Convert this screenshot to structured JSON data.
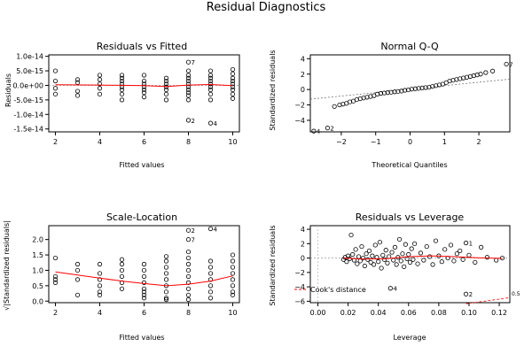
{
  "figure": {
    "title": "Residual Diagnostics"
  },
  "chart_data": [
    {
      "id": "rvf",
      "type": "scatter",
      "title": "Residuals vs Fitted",
      "xlabel": "Fitted values",
      "ylabel": "Residuals",
      "xlim": [
        1.7,
        10.3
      ],
      "ylim": [
        -1.6e-14,
        1.05e-14
      ],
      "xticks": [
        2,
        4,
        6,
        8,
        10
      ],
      "xticklabels": [
        "2",
        "4",
        "6",
        "8",
        "10"
      ],
      "yticks": [
        -1.5e-14,
        -1e-14,
        -5e-15,
        0,
        5e-15,
        1e-14
      ],
      "yticklabels": [
        "-1.5e-14",
        "-1.0e-14",
        "-5.0e-15",
        "0.0e+00",
        "5.0e-15",
        "1.0e-14"
      ],
      "points": [
        [
          2,
          5e-15
        ],
        [
          2,
          -1e-15
        ],
        [
          2,
          1.5e-15
        ],
        [
          2,
          -3e-15
        ],
        [
          3,
          2e-15
        ],
        [
          3,
          1e-15
        ],
        [
          3,
          -2e-15
        ],
        [
          3,
          -3.5e-15
        ],
        [
          4,
          3.5e-15
        ],
        [
          4,
          2e-15
        ],
        [
          4,
          5e-16
        ],
        [
          4,
          -1e-15
        ],
        [
          4,
          -3e-15
        ],
        [
          5,
          3.5e-15
        ],
        [
          5,
          2.5e-15
        ],
        [
          5,
          1.5e-15
        ],
        [
          5,
          5e-16
        ],
        [
          5,
          -5e-16
        ],
        [
          5,
          -1.5e-15
        ],
        [
          5,
          -3e-15
        ],
        [
          5,
          -5e-15
        ],
        [
          6,
          3.5e-15
        ],
        [
          6,
          1.5e-15
        ],
        [
          6,
          5e-16
        ],
        [
          6,
          -5e-16
        ],
        [
          6,
          -1.5e-15
        ],
        [
          6,
          -2.5e-15
        ],
        [
          6,
          -4e-15
        ],
        [
          7,
          2.5e-15
        ],
        [
          7,
          1.5e-15
        ],
        [
          7,
          5e-16
        ],
        [
          7,
          -5e-16
        ],
        [
          7,
          -1.5e-15
        ],
        [
          7,
          -3e-15
        ],
        [
          7,
          -5e-15
        ],
        [
          8,
          8e-15
        ],
        [
          8,
          5e-15
        ],
        [
          8,
          3.5e-15
        ],
        [
          8,
          2.5e-15
        ],
        [
          8,
          1.5e-15
        ],
        [
          8,
          5e-16
        ],
        [
          8,
          -5e-16
        ],
        [
          8,
          -1.5e-15
        ],
        [
          8,
          -2.5e-15
        ],
        [
          8,
          -3.5e-15
        ],
        [
          8,
          -5e-15
        ],
        [
          8,
          -1.2e-14
        ],
        [
          9,
          5e-15
        ],
        [
          9,
          3.5e-15
        ],
        [
          9,
          2.5e-15
        ],
        [
          9,
          1.5e-15
        ],
        [
          9,
          5e-16
        ],
        [
          9,
          -5e-16
        ],
        [
          9,
          -1.5e-15
        ],
        [
          9,
          -3e-15
        ],
        [
          9,
          -5e-15
        ],
        [
          9,
          -1.3e-14
        ],
        [
          10,
          5.5e-15
        ],
        [
          10,
          4e-15
        ],
        [
          10,
          2.5e-15
        ],
        [
          10,
          1.5e-15
        ],
        [
          10,
          5e-16
        ],
        [
          10,
          -5e-16
        ],
        [
          10,
          -1.5e-15
        ],
        [
          10,
          -3e-15
        ],
        [
          10,
          -4.5e-15
        ]
      ],
      "smooth": [
        [
          2,
          2e-16
        ],
        [
          4,
          1e-16
        ],
        [
          6,
          -1e-16
        ],
        [
          7,
          -4e-16
        ],
        [
          8,
          1e-16
        ],
        [
          9,
          3e-16
        ],
        [
          10,
          -1e-16
        ]
      ],
      "labels": [
        {
          "text": "7",
          "x": 8,
          "y": 8e-15
        },
        {
          "text": "2",
          "x": 8,
          "y": -1.2e-14
        },
        {
          "text": "4",
          "x": 9,
          "y": -1.3e-14
        }
      ]
    },
    {
      "id": "qq",
      "type": "scatter",
      "title": "Normal Q-Q",
      "xlabel": "Theoretical Quantiles",
      "ylabel": "Standardized residuals",
      "xlim": [
        -2.9,
        2.9
      ],
      "ylim": [
        -5.5,
        4.5
      ],
      "xticks": [
        -2,
        -1,
        0,
        1,
        2
      ],
      "xticklabels": [
        "−2",
        "−1",
        "0",
        "1",
        "2"
      ],
      "yticks": [
        -4,
        -2,
        0,
        2,
        4
      ],
      "yticklabels": [
        "−4",
        "−2",
        "0",
        "2",
        "4"
      ],
      "points": [
        [
          -2.8,
          -5.4
        ],
        [
          -2.4,
          -5.0
        ],
        [
          -2.2,
          -2.2
        ],
        [
          -2.05,
          -2.0
        ],
        [
          -1.95,
          -1.9
        ],
        [
          -1.85,
          -1.8
        ],
        [
          -1.75,
          -1.6
        ],
        [
          -1.65,
          -1.5
        ],
        [
          -1.55,
          -1.3
        ],
        [
          -1.45,
          -1.2
        ],
        [
          -1.35,
          -1.1
        ],
        [
          -1.25,
          -1.0
        ],
        [
          -1.15,
          -0.9
        ],
        [
          -1.05,
          -0.8
        ],
        [
          -0.95,
          -0.6
        ],
        [
          -0.85,
          -0.5
        ],
        [
          -0.75,
          -0.45
        ],
        [
          -0.65,
          -0.4
        ],
        [
          -0.55,
          -0.35
        ],
        [
          -0.45,
          -0.3
        ],
        [
          -0.35,
          -0.25
        ],
        [
          -0.25,
          -0.2
        ],
        [
          -0.15,
          -0.1
        ],
        [
          -0.05,
          -0.05
        ],
        [
          0.05,
          0.05
        ],
        [
          0.15,
          0.1
        ],
        [
          0.25,
          0.15
        ],
        [
          0.35,
          0.2
        ],
        [
          0.45,
          0.25
        ],
        [
          0.55,
          0.3
        ],
        [
          0.65,
          0.4
        ],
        [
          0.75,
          0.5
        ],
        [
          0.85,
          0.6
        ],
        [
          0.95,
          0.7
        ],
        [
          1.05,
          0.9
        ],
        [
          1.15,
          1.1
        ],
        [
          1.25,
          1.2
        ],
        [
          1.35,
          1.3
        ],
        [
          1.45,
          1.4
        ],
        [
          1.55,
          1.5
        ],
        [
          1.65,
          1.6
        ],
        [
          1.75,
          1.7
        ],
        [
          1.85,
          1.8
        ],
        [
          1.95,
          1.9
        ],
        [
          2.05,
          2.0
        ],
        [
          2.2,
          2.2
        ],
        [
          2.4,
          2.4
        ],
        [
          2.8,
          3.3
        ]
      ],
      "refline": [
        [
          -2.9,
          -1.25
        ],
        [
          2.9,
          1.35
        ]
      ],
      "labels": [
        {
          "text": "7",
          "x": 2.8,
          "y": 3.3
        },
        {
          "text": "4",
          "x": -2.8,
          "y": -5.4
        },
        {
          "text": "2",
          "x": -2.4,
          "y": -5.0
        }
      ]
    },
    {
      "id": "sl",
      "type": "scatter",
      "title": "Scale-Location",
      "xlabel": "Fitted values",
      "ylabel": "√|Standardized residuals|",
      "xlim": [
        1.7,
        10.3
      ],
      "ylim": [
        -0.05,
        2.45
      ],
      "xticks": [
        2,
        4,
        6,
        8,
        10
      ],
      "xticklabels": [
        "2",
        "4",
        "6",
        "8",
        "10"
      ],
      "yticks": [
        0.0,
        0.5,
        1.0,
        1.5,
        2.0
      ],
      "yticklabels": [
        "0.0",
        "0.5",
        "1.0",
        "1.5",
        "2.0"
      ],
      "points": [
        [
          2,
          1.4
        ],
        [
          2,
          0.8
        ],
        [
          2,
          0.7
        ],
        [
          2,
          0.6
        ],
        [
          3,
          1.2
        ],
        [
          3,
          1.0
        ],
        [
          3,
          0.7
        ],
        [
          3,
          0.2
        ],
        [
          4,
          1.2
        ],
        [
          4,
          0.9
        ],
        [
          4,
          0.7
        ],
        [
          4,
          0.5
        ],
        [
          4,
          0.3
        ],
        [
          4,
          0.2
        ],
        [
          5,
          1.35
        ],
        [
          5,
          1.2
        ],
        [
          5,
          1.0
        ],
        [
          5,
          0.8
        ],
        [
          5,
          0.6
        ],
        [
          5,
          0.4
        ],
        [
          6,
          1.2
        ],
        [
          6,
          1.0
        ],
        [
          6,
          0.8
        ],
        [
          6,
          0.6
        ],
        [
          6,
          0.4
        ],
        [
          6,
          0.3
        ],
        [
          6,
          0.2
        ],
        [
          6,
          0.1
        ],
        [
          7,
          1.45
        ],
        [
          7,
          1.3
        ],
        [
          7,
          1.1
        ],
        [
          7,
          0.9
        ],
        [
          7,
          0.7
        ],
        [
          7,
          0.5
        ],
        [
          7,
          0.3
        ],
        [
          7,
          0.1
        ],
        [
          7,
          0.05
        ],
        [
          8,
          2.3
        ],
        [
          8,
          2.0
        ],
        [
          8,
          1.6
        ],
        [
          8,
          1.4
        ],
        [
          8,
          1.2
        ],
        [
          8,
          1.0
        ],
        [
          8,
          0.8
        ],
        [
          8,
          0.6
        ],
        [
          8,
          0.4
        ],
        [
          8,
          0.2
        ],
        [
          8,
          0.05
        ],
        [
          9,
          2.35
        ],
        [
          9,
          1.3
        ],
        [
          9,
          1.1
        ],
        [
          9,
          0.9
        ],
        [
          9,
          0.7
        ],
        [
          9,
          0.5
        ],
        [
          9,
          0.3
        ],
        [
          9,
          0.1
        ],
        [
          10,
          1.5
        ],
        [
          10,
          1.3
        ],
        [
          10,
          1.1
        ],
        [
          10,
          0.9
        ],
        [
          10,
          0.7
        ],
        [
          10,
          0.5
        ],
        [
          10,
          0.3
        ],
        [
          10,
          0.2
        ]
      ],
      "smooth": [
        [
          2,
          0.95
        ],
        [
          3,
          0.85
        ],
        [
          4,
          0.75
        ],
        [
          5,
          0.65
        ],
        [
          6,
          0.57
        ],
        [
          7,
          0.5
        ],
        [
          8,
          0.55
        ],
        [
          9,
          0.65
        ],
        [
          10,
          0.82
        ]
      ],
      "labels": [
        {
          "text": "2",
          "x": 8,
          "y": 2.3
        },
        {
          "text": "7",
          "x": 8,
          "y": 2.0
        },
        {
          "text": "4",
          "x": 9,
          "y": 2.35
        }
      ]
    },
    {
      "id": "rvl",
      "type": "scatter",
      "title": "Residuals vs Leverage",
      "xlabel": "Leverage",
      "ylabel": "Standardized residuals",
      "xlim": [
        -0.005,
        0.127
      ],
      "ylim": [
        -6.2,
        4.5
      ],
      "xticks": [
        0.0,
        0.02,
        0.04,
        0.06,
        0.08,
        0.1,
        0.12
      ],
      "xticklabels": [
        "0.00",
        "0.02",
        "0.04",
        "0.06",
        "0.08",
        "0.10",
        "0.12"
      ],
      "yticks": [
        -6,
        -4,
        -2,
        0,
        2,
        4
      ],
      "yticklabels": [
        "−6",
        "−4",
        "−2",
        "0",
        "2",
        "4"
      ],
      "points": [
        [
          0.017,
          -0.2
        ],
        [
          0.018,
          0.1
        ],
        [
          0.019,
          -0.5
        ],
        [
          0.02,
          0.3
        ],
        [
          0.021,
          -0.1
        ],
        [
          0.022,
          3.2
        ],
        [
          0.023,
          0.5
        ],
        [
          0.024,
          -0.3
        ],
        [
          0.025,
          1.2
        ],
        [
          0.026,
          -0.8
        ],
        [
          0.027,
          0.2
        ],
        [
          0.028,
          -0.4
        ],
        [
          0.029,
          1.6
        ],
        [
          0.03,
          0.0
        ],
        [
          0.031,
          -1.1
        ],
        [
          0.032,
          0.6
        ],
        [
          0.033,
          -0.2
        ],
        [
          0.034,
          1.0
        ],
        [
          0.035,
          -0.6
        ],
        [
          0.036,
          0.3
        ],
        [
          0.037,
          -0.9
        ],
        [
          0.038,
          1.8
        ],
        [
          0.039,
          0.1
        ],
        [
          0.04,
          -0.5
        ],
        [
          0.041,
          2.2
        ],
        [
          0.042,
          -1.4
        ],
        [
          0.043,
          0.4
        ],
        [
          0.044,
          -0.2
        ],
        [
          0.045,
          1.1
        ],
        [
          0.046,
          -0.7
        ],
        [
          0.047,
          0.2
        ],
        [
          0.048,
          -4.2
        ],
        [
          0.049,
          0.8
        ],
        [
          0.05,
          -0.3
        ],
        [
          0.051,
          1.5
        ],
        [
          0.052,
          -0.9
        ],
        [
          0.053,
          0.1
        ],
        [
          0.054,
          2.6
        ],
        [
          0.055,
          -0.4
        ],
        [
          0.056,
          0.6
        ],
        [
          0.057,
          -1.2
        ],
        [
          0.058,
          1.9
        ],
        [
          0.059,
          -0.1
        ],
        [
          0.06,
          0.5
        ],
        [
          0.061,
          -0.6
        ],
        [
          0.062,
          1.3
        ],
        [
          0.063,
          -0.2
        ],
        [
          0.064,
          2.0
        ],
        [
          0.066,
          -0.8
        ],
        [
          0.068,
          0.7
        ],
        [
          0.07,
          -0.3
        ],
        [
          0.072,
          1.6
        ],
        [
          0.074,
          0.2
        ],
        [
          0.076,
          -0.9
        ],
        [
          0.078,
          2.4
        ],
        [
          0.08,
          0.3
        ],
        [
          0.082,
          -0.5
        ],
        [
          0.084,
          1.2
        ],
        [
          0.086,
          0.0
        ],
        [
          0.088,
          1.8
        ],
        [
          0.09,
          -0.4
        ],
        [
          0.092,
          0.6
        ],
        [
          0.094,
          1.0
        ],
        [
          0.096,
          -0.2
        ],
        [
          0.098,
          2.1
        ],
        [
          0.1,
          0.4
        ],
        [
          0.104,
          -0.6
        ],
        [
          0.108,
          1.5
        ],
        [
          0.112,
          0.1
        ],
        [
          0.118,
          -0.3
        ],
        [
          0.122,
          0.0
        ],
        [
          0.098,
          -5.0
        ]
      ],
      "smooth": [
        [
          0.017,
          0.0
        ],
        [
          0.03,
          -0.15
        ],
        [
          0.045,
          -0.1
        ],
        [
          0.06,
          0.2
        ],
        [
          0.075,
          0.3
        ],
        [
          0.09,
          0.2
        ],
        [
          0.105,
          0.05
        ],
        [
          0.122,
          -0.05
        ]
      ],
      "cooks_lower": [
        [
          0.098,
          -6.35
        ],
        [
          0.11,
          -6.0
        ],
        [
          0.122,
          -5.65
        ],
        [
          0.127,
          -5.5
        ]
      ],
      "cooks_label": "0.5",
      "legend": "Cook's distance",
      "labels": [
        {
          "text": "1",
          "x": 0.098,
          "y": 2.1
        },
        {
          "text": "2",
          "x": 0.098,
          "y": -5.0
        },
        {
          "text": "4",
          "x": 0.048,
          "y": -4.2
        }
      ]
    }
  ]
}
